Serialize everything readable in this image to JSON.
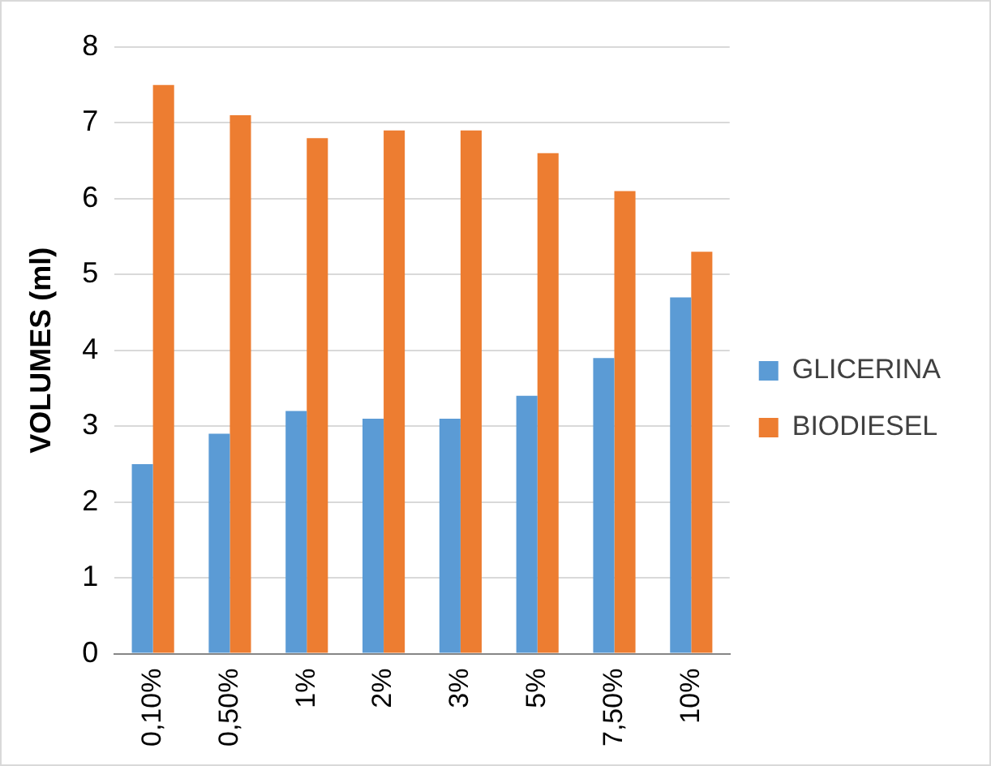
{
  "chart_data": {
    "type": "bar",
    "ylabel": "VOLUMES (ml)",
    "categories": [
      "0,10%",
      "0,50%",
      "1%",
      "2%",
      "3%",
      "5%",
      "7,50%",
      "10%"
    ],
    "series": [
      {
        "name": "GLICERINA",
        "color": "#5b9bd5",
        "values": [
          2.5,
          2.9,
          3.2,
          3.1,
          3.1,
          3.4,
          3.9,
          4.7
        ]
      },
      {
        "name": "BIODIESEL",
        "color": "#ed7d31",
        "values": [
          7.5,
          7.1,
          6.8,
          6.9,
          6.9,
          6.6,
          6.1,
          5.3
        ]
      }
    ],
    "ylim": [
      0,
      8
    ],
    "yticks": [
      0,
      1,
      2,
      3,
      4,
      5,
      6,
      7,
      8
    ],
    "grid": "y",
    "legend": "right"
  }
}
